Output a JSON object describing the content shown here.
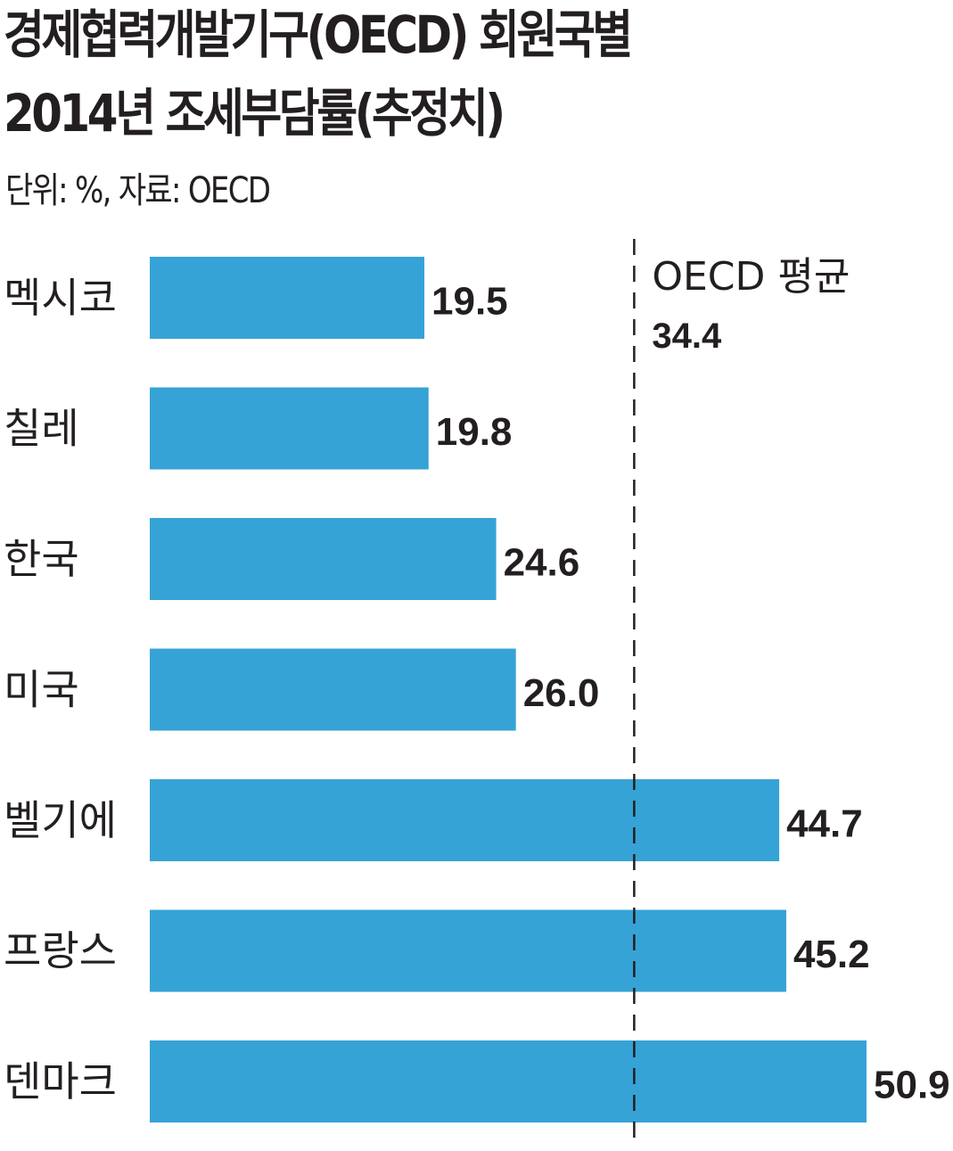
{
  "header": {
    "title_line1": "경제협력개발기구(OECD) 회원국별",
    "title_line2": "2014년 조세부담률(추정치)",
    "unit_source": "단위: %, 자료: OECD"
  },
  "colors": {
    "bar": "#36a3d6",
    "text": "#231f20",
    "reference_line": "#231f20",
    "background": "#ffffff"
  },
  "chart_data": {
    "type": "bar",
    "orientation": "horizontal",
    "title": "경제협력개발기구(OECD) 회원국별 2014년 조세부담률(추정치)",
    "unit": "%",
    "source": "OECD",
    "categories": [
      "멕시코",
      "칠레",
      "한국",
      "미국",
      "벨기에",
      "프랑스",
      "덴마크"
    ],
    "values": [
      19.5,
      19.8,
      24.6,
      26.0,
      44.7,
      45.2,
      50.9
    ],
    "value_labels": [
      "19.5",
      "19.8",
      "24.6",
      "26.0",
      "44.7",
      "45.2",
      "50.9"
    ],
    "reference_line": {
      "label": "OECD 평균",
      "value": 34.4,
      "value_label": "34.4",
      "style": "dashed"
    },
    "xlim": [
      0,
      50.9
    ],
    "grid": false,
    "legend": "none"
  }
}
